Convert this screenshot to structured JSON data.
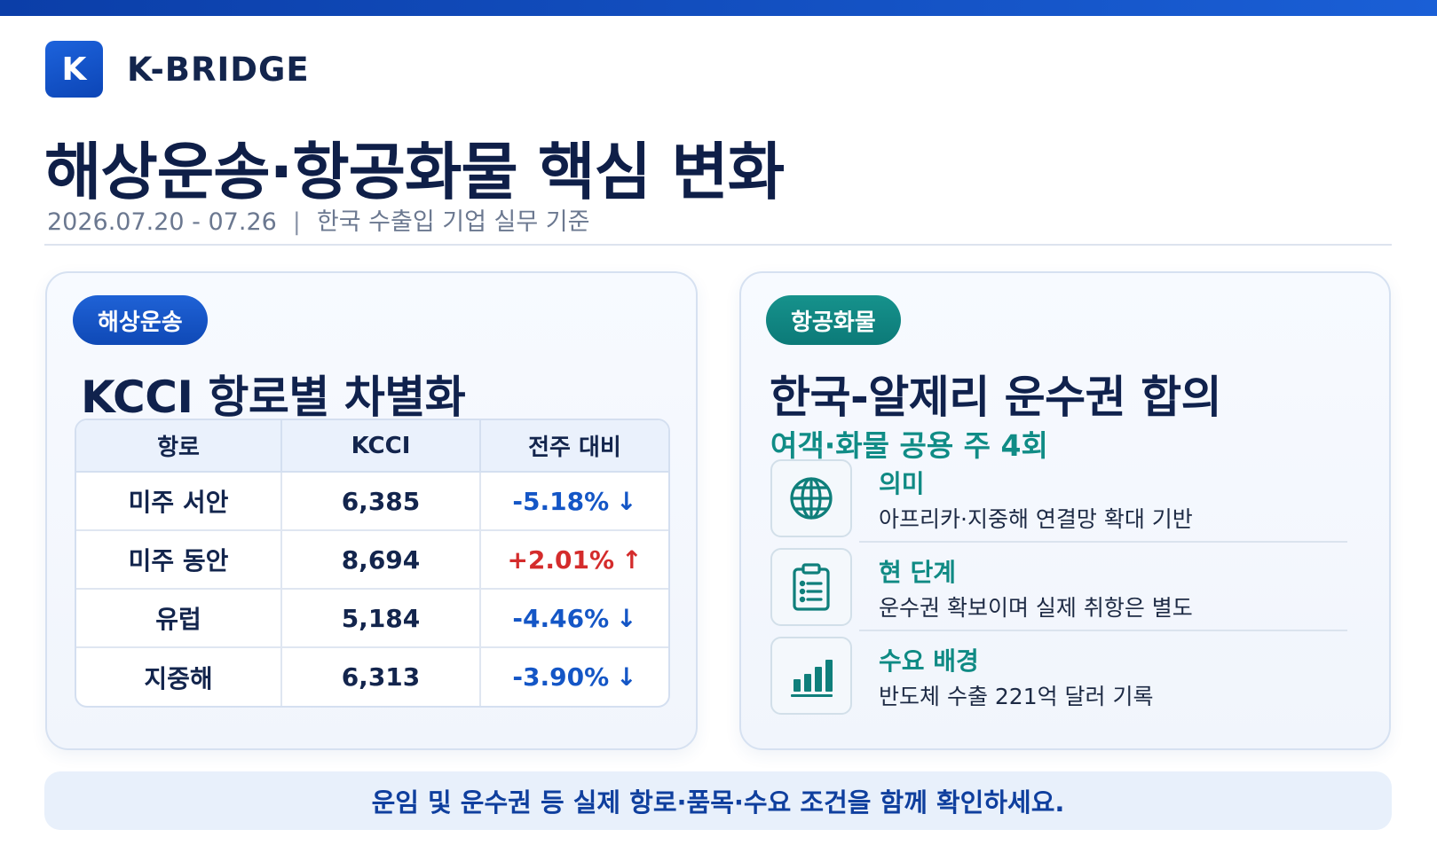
{
  "brand": {
    "mark": "K",
    "name": "K-BRIDGE"
  },
  "header": {
    "title": "해상운송·항공화물 핵심 변화",
    "date_range": "2026.07.20 - 07.26",
    "separator": "|",
    "scope": "한국 수출입 기업 실무 기준"
  },
  "sea": {
    "tag": "해상운송",
    "title": "KCCI 항로별 차별화",
    "columns": [
      "항로",
      "KCCI",
      "전주 대비"
    ],
    "rows": [
      {
        "route": "미주 서안",
        "kcci": "6,385",
        "change": "-5.18%",
        "direction": "down"
      },
      {
        "route": "미주 동안",
        "kcci": "8,694",
        "change": "+2.01%",
        "direction": "up"
      },
      {
        "route": "유럽",
        "kcci": "5,184",
        "change": "-4.46%",
        "direction": "down"
      },
      {
        "route": "지중해",
        "kcci": "6,313",
        "change": "-3.90%",
        "direction": "down"
      }
    ],
    "colors": {
      "down": "#1456c6",
      "up": "#d42c2c"
    }
  },
  "air": {
    "tag": "항공화물",
    "title": "한국-알제리 운수권 합의",
    "subtitle": "여객·화물 공용 주 4회",
    "items": [
      {
        "icon": "globe-icon",
        "label": "의미",
        "text": "아프리카·지중해 연결망 확대 기반"
      },
      {
        "icon": "clipboard-icon",
        "label": "현 단계",
        "text": "운수권 확보이며 실제 취항은 별도"
      },
      {
        "icon": "bar-chart-icon",
        "label": "수요 배경",
        "text": "반도체 수출 221억 달러 기록"
      }
    ]
  },
  "footer": {
    "note": "운임 및 운수권 등 실제 항로·품목·수요 조건을 함께 확인하세요."
  },
  "theme": {
    "primary": "#0f49b6",
    "teal": "#0f8a84",
    "ink": "#10204a"
  }
}
